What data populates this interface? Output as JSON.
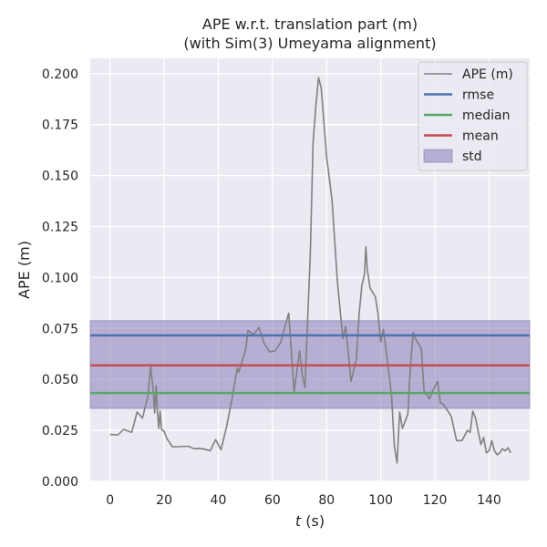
{
  "chart_data": {
    "type": "line",
    "title": [
      "APE w.r.t. translation part (m)",
      "(with Sim(3) Umeyama alignment)"
    ],
    "xlabel_italic": "t",
    "xlabel_rest": " (s)",
    "ylabel": "APE (m)",
    "xlim": [
      -7.3,
      155
    ],
    "ylim": [
      0,
      0.2075
    ],
    "xticks": [
      0,
      20,
      40,
      60,
      80,
      100,
      120,
      140
    ],
    "yticks": [
      0.0,
      0.025,
      0.05,
      0.075,
      0.1,
      0.125,
      0.15,
      0.175,
      0.2
    ],
    "ytick_labels": [
      "0.000",
      "0.025",
      "0.050",
      "0.075",
      "0.100",
      "0.125",
      "0.150",
      "0.175",
      "0.200"
    ],
    "grid": true,
    "legend_position": "top-right",
    "series": [
      {
        "name": "APE (m)",
        "color": "#808080",
        "x": [
          0,
          3,
          5,
          8,
          10,
          12,
          14,
          15,
          16,
          16.5,
          17,
          17.5,
          18,
          18.5,
          19,
          20,
          21,
          23,
          25,
          29,
          31,
          33,
          35,
          37,
          39,
          41,
          43,
          45,
          47,
          47.5,
          48,
          50,
          51,
          53,
          55,
          57,
          59,
          61,
          63,
          66,
          68,
          70,
          71,
          72,
          74,
          75,
          76,
          77,
          78,
          80,
          82,
          84,
          86,
          87,
          88,
          89,
          91,
          92,
          93,
          94,
          94.5,
          95,
          96,
          98,
          99,
          100,
          101,
          102,
          103,
          104,
          105,
          106,
          107,
          108,
          110,
          111,
          112,
          113,
          115,
          116,
          117,
          118,
          119,
          121,
          122,
          123,
          126,
          128,
          130,
          132,
          133,
          134,
          135,
          137,
          138,
          139,
          140,
          141,
          142,
          143,
          144,
          145,
          146,
          147,
          148
        ],
        "y": [
          0.023,
          0.0228,
          0.0255,
          0.024,
          0.034,
          0.031,
          0.042,
          0.0565,
          0.044,
          0.0335,
          0.047,
          0.034,
          0.026,
          0.0345,
          0.0255,
          0.0245,
          0.021,
          0.017,
          0.017,
          0.0172,
          0.016,
          0.0162,
          0.0158,
          0.015,
          0.0205,
          0.0155,
          0.0265,
          0.04,
          0.0555,
          0.0535,
          0.0555,
          0.064,
          0.074,
          0.072,
          0.0755,
          0.0675,
          0.0635,
          0.064,
          0.068,
          0.0825,
          0.044,
          0.064,
          0.0525,
          0.046,
          0.112,
          0.166,
          0.184,
          0.198,
          0.193,
          0.159,
          0.138,
          0.098,
          0.07,
          0.076,
          0.063,
          0.049,
          0.06,
          0.082,
          0.096,
          0.1015,
          0.115,
          0.1045,
          0.095,
          0.0905,
          0.082,
          0.0685,
          0.0745,
          0.064,
          0.053,
          0.042,
          0.0175,
          0.009,
          0.034,
          0.026,
          0.033,
          0.0575,
          0.073,
          0.0695,
          0.065,
          0.044,
          0.0425,
          0.0405,
          0.044,
          0.049,
          0.0385,
          0.038,
          0.032,
          0.02,
          0.02,
          0.025,
          0.024,
          0.0345,
          0.031,
          0.018,
          0.0215,
          0.014,
          0.015,
          0.02,
          0.015,
          0.013,
          0.014,
          0.016,
          0.015,
          0.0165,
          0.014
        ]
      },
      {
        "name": "rmse",
        "color": "#4c72b0",
        "value": 0.0716
      },
      {
        "name": "median",
        "color": "#55a868",
        "value": 0.0433
      },
      {
        "name": "mean",
        "color": "#c44e52",
        "value": 0.0569
      },
      {
        "name": "std",
        "color": "#8172b3",
        "range": [
          0.0358,
          0.0788
        ]
      }
    ]
  }
}
